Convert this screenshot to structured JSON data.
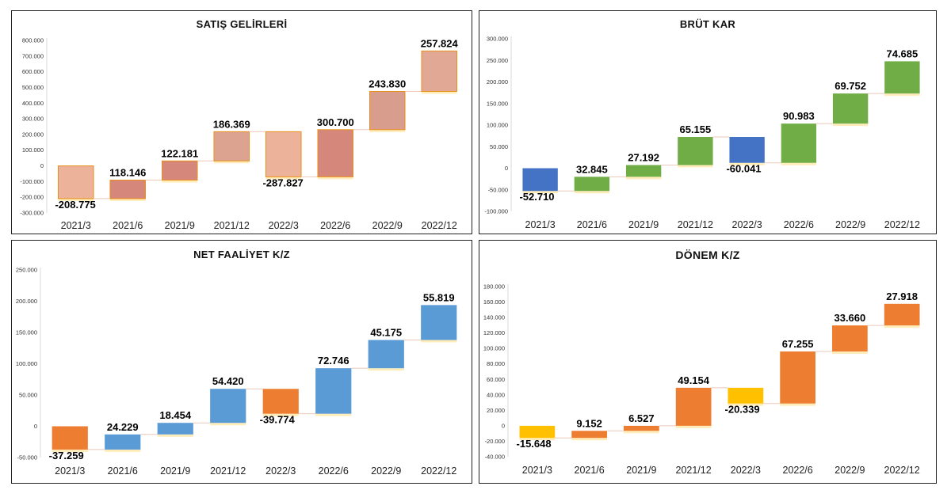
{
  "chart_data": [
    {
      "type": "bar",
      "subtype": "waterfall",
      "title": "SATIŞ GELİRLERİ",
      "categories": [
        "2021/3",
        "2021/6",
        "2021/9",
        "2021/12",
        "2022/3",
        "2022/6",
        "2022/9",
        "2022/12"
      ],
      "values": [
        -208.775,
        118.146,
        122.181,
        186.369,
        -287.827,
        300.7,
        243.83,
        257.824
      ],
      "data_labels": [
        "-208.775",
        "118.146",
        "122.181",
        "186.369",
        "-287.827",
        "300.700",
        "243.830",
        "257.824"
      ],
      "yticks": [
        "800.000",
        "700.000",
        "600.000",
        "500.000",
        "400.000",
        "300.000",
        "200.000",
        "100.000",
        "0",
        "-100.000",
        "-200.000",
        "-300.000"
      ],
      "ylim": [
        -300000,
        800000
      ],
      "grid": false,
      "legend": "none",
      "colors": [
        "#edb39a",
        "#d4877a",
        "#d4877a",
        "#dca391",
        "#edb39a",
        "#d4877a",
        "#d99d8e",
        "#e2a896"
      ],
      "bar_edge_color": "#e8901a"
    },
    {
      "type": "bar",
      "subtype": "waterfall",
      "title": "BRÜT KAR",
      "categories": [
        "2021/3",
        "2021/6",
        "2021/9",
        "2021/12",
        "2022/3",
        "2022/6",
        "2022/9",
        "2022/12"
      ],
      "values": [
        -52.71,
        32.845,
        27.192,
        65.155,
        -60.041,
        90.983,
        69.752,
        74.685
      ],
      "data_labels": [
        "-52.710",
        "32.845",
        "27.192",
        "65.155",
        "-60.041",
        "90.983",
        "69.752",
        "74.685"
      ],
      "yticks": [
        "300.000",
        "250.000",
        "200.000",
        "150.000",
        "100.000",
        "50.000",
        "0",
        "-50.000",
        "-100.000"
      ],
      "ylim": [
        -100000,
        300000
      ],
      "grid": false,
      "legend": "none",
      "colors": [
        "#4472c4",
        "#70ad47",
        "#70ad47",
        "#70ad47",
        "#4472c4",
        "#70ad47",
        "#70ad47",
        "#70ad47"
      ]
    },
    {
      "type": "bar",
      "subtype": "waterfall",
      "title": "NET FAALİYET K/Z",
      "categories": [
        "2021/3",
        "2021/6",
        "2021/9",
        "2021/12",
        "2022/3",
        "2022/6",
        "2022/9",
        "2022/12"
      ],
      "values": [
        -37.259,
        24.229,
        18.454,
        54.42,
        -39.774,
        72.746,
        45.175,
        55.819
      ],
      "data_labels": [
        "-37.259",
        "24.229",
        "18.454",
        "54.420",
        "-39.774",
        "72.746",
        "45.175",
        "55.819"
      ],
      "yticks": [
        "250.000",
        "200.000",
        "150.000",
        "100.000",
        "50.000",
        "0",
        "-50.000"
      ],
      "ylim": [
        -50000,
        250000
      ],
      "grid": false,
      "legend": "none",
      "colors": [
        "#ed7d31",
        "#5b9bd5",
        "#5b9bd5",
        "#5b9bd5",
        "#ed7d31",
        "#5b9bd5",
        "#5b9bd5",
        "#5b9bd5"
      ]
    },
    {
      "type": "bar",
      "subtype": "waterfall",
      "title": "DÖNEM K/Z",
      "categories": [
        "2021/3",
        "2021/6",
        "2021/9",
        "2021/12",
        "2022/3",
        "2022/6",
        "2022/9",
        "2022/12"
      ],
      "values": [
        -15.648,
        9.152,
        6.527,
        49.154,
        -20.339,
        67.255,
        33.66,
        27.918
      ],
      "data_labels": [
        "-15.648",
        "9.152",
        "6.527",
        "49.154",
        "-20.339",
        "67.255",
        "33.660",
        "27.918"
      ],
      "yticks": [
        "180.000",
        "160.000",
        "140.000",
        "120.000",
        "100.000",
        "80.000",
        "60.000",
        "40.000",
        "20.000",
        "0",
        "-20.000",
        "-40.000"
      ],
      "ylim": [
        -40000,
        180000
      ],
      "grid": false,
      "legend": "none",
      "colors": [
        "#ffc000",
        "#ed7d31",
        "#ed7d31",
        "#ed7d31",
        "#ffc000",
        "#ed7d31",
        "#ed7d31",
        "#ed7d31"
      ]
    }
  ]
}
